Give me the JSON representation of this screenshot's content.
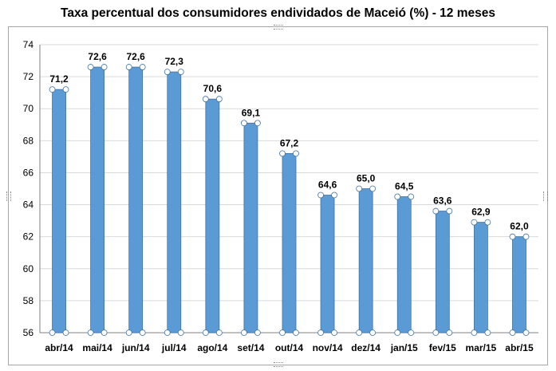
{
  "chart_data": {
    "type": "bar",
    "title": "Taxa percentual dos consumidores endividados de Maceió (%) - 12 meses",
    "xlabel": "",
    "ylabel": "",
    "ylim": [
      56,
      74
    ],
    "yticks": [
      "56",
      "58",
      "60",
      "62",
      "64",
      "66",
      "68",
      "70",
      "72",
      "74"
    ],
    "categories": [
      "abr/14",
      "mai/14",
      "jun/14",
      "jul/14",
      "ago/14",
      "set/14",
      "out/14",
      "nov/14",
      "dez/14",
      "jan/15",
      "fev/15",
      "mar/15",
      "abr/15"
    ],
    "values": [
      71.2,
      72.6,
      72.6,
      72.3,
      70.6,
      69.1,
      67.2,
      64.6,
      65.0,
      64.5,
      63.6,
      62.9,
      62.0
    ],
    "value_labels": [
      "71,2",
      "72,6",
      "72,6",
      "72,3",
      "70,6",
      "69,1",
      "67,2",
      "64,6",
      "65,0",
      "64,5",
      "63,6",
      "62,9",
      "62,0"
    ],
    "grid": true,
    "legend": "none",
    "colors": {
      "bar": "#5b9bd5",
      "bar_edge": "#41719c",
      "grid": "#d9d9d9",
      "axis": "#808080"
    }
  }
}
